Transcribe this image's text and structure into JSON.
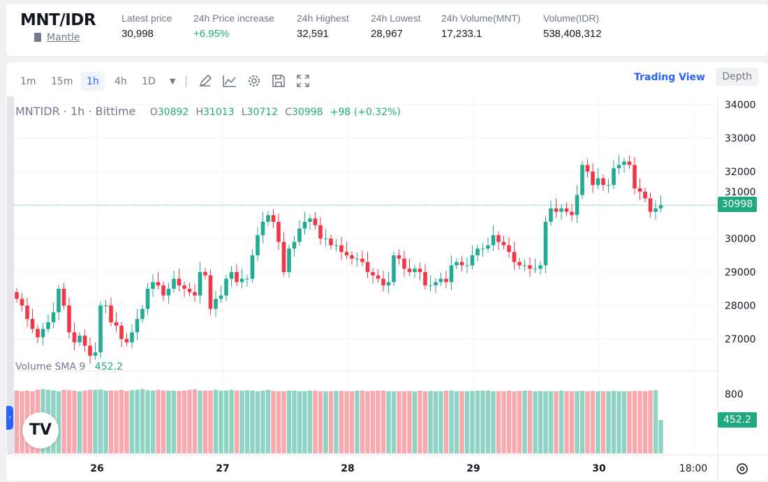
{
  "header": {
    "pair": "MNT/IDR",
    "coin": "Mantle",
    "stats": [
      {
        "label": "Latest price",
        "value": "30,998"
      },
      {
        "label": "24h Price increase",
        "value": "+6.95%",
        "positive": true
      },
      {
        "label": "24h Highest",
        "value": "32,591"
      },
      {
        "label": "24h Lowest",
        "value": "28,967"
      },
      {
        "label": "24h Volume(MNT)",
        "value": "17,233.1"
      },
      {
        "label": "Volume(IDR)",
        "value": "538,408,312"
      }
    ]
  },
  "toolbar": {
    "intervals": [
      "1m",
      "15m",
      "1h",
      "4h",
      "1D"
    ],
    "active": "1h",
    "icons": [
      "chevron-down-icon",
      "pencil-icon",
      "indicator-icon",
      "gear-icon",
      "save-icon",
      "fullscreen-icon"
    ],
    "trading_view": "Trading View",
    "depth": "Depth"
  },
  "legend": {
    "symbol": "MNTIDR · 1h · Bittime",
    "o_label": "O",
    "o": "30892",
    "h_label": "H",
    "h": "31013",
    "l_label": "L",
    "l": "30712",
    "c_label": "C",
    "c": "30998",
    "change": "+98 (+0.32%)"
  },
  "volume_legend": {
    "label": "Volume SMA 9",
    "value": "452.2"
  },
  "colors": {
    "up": "#22ab94",
    "down": "#f23645",
    "up_volume": "#8fd3c4",
    "down_volume": "#f7a9ad",
    "accent": "#2962ff"
  },
  "chart_data": {
    "type": "candlestick",
    "price_ticks": [
      "34000",
      "33000",
      "32000",
      "31000",
      "30000",
      "29000",
      "28000",
      "27000"
    ],
    "ylim": [
      26200,
      34200
    ],
    "current_price": "30998",
    "x_ticks": [
      "26",
      "27",
      "28",
      "29",
      "30",
      "18:00"
    ],
    "volume_ticks": [
      "800"
    ],
    "current_volume": "452.2",
    "first_open": 28400,
    "closes": [
      28200,
      28000,
      27600,
      27300,
      27050,
      27300,
      27500,
      27800,
      28500,
      28000,
      27200,
      26900,
      27100,
      26800,
      26500,
      26600,
      28000,
      28000,
      27500,
      27400,
      27000,
      26900,
      27200,
      27600,
      27900,
      28500,
      28700,
      28600,
      28300,
      28500,
      28800,
      28600,
      28500,
      28400,
      28300,
      29000,
      28900,
      27900,
      28200,
      28300,
      28800,
      29000,
      28700,
      28800,
      28800,
      29500,
      30100,
      30500,
      30700,
      30500,
      29900,
      29000,
      29700,
      29900,
      30300,
      30500,
      30600,
      30400,
      30000,
      30000,
      29800,
      29800,
      29600,
      29500,
      29400,
      29400,
      29300,
      29000,
      28900,
      28800,
      28600,
      28700,
      29500,
      29400,
      29100,
      29000,
      29100,
      29000,
      28600,
      28600,
      28700,
      28800,
      28700,
      29200,
      29300,
      29200,
      29200,
      29500,
      29700,
      29700,
      29800,
      30100,
      29900,
      29800,
      29600,
      29300,
      29200,
      29200,
      29100,
      29100,
      29200,
      30500,
      30900,
      30800,
      30900,
      30800,
      30700,
      31300,
      32200,
      32000,
      31600,
      31800,
      31600,
      31600,
      32100,
      32200,
      32300,
      32200,
      31500,
      31400,
      31200,
      30800,
      30900,
      30998
    ],
    "volumes": [
      850,
      840,
      850,
      840,
      860,
      870,
      860,
      850,
      840,
      860,
      855,
      850,
      840,
      850,
      860,
      860,
      865,
      850,
      850,
      850,
      860,
      845,
      855,
      860,
      870,
      855,
      850,
      860,
      850,
      850,
      850,
      845,
      850,
      860,
      865,
      850,
      850,
      850,
      860,
      850,
      850,
      860,
      850,
      850,
      855,
      850,
      840,
      850,
      860,
      845,
      840,
      840,
      850,
      850,
      840,
      840,
      850,
      850,
      840,
      840,
      840,
      845,
      845,
      840,
      840,
      850,
      850,
      840,
      845,
      850,
      850,
      840,
      840,
      840,
      840,
      845,
      840,
      850,
      840,
      845,
      840,
      840,
      850,
      850,
      840,
      840,
      840,
      845,
      850,
      850,
      850,
      840,
      840,
      840,
      850,
      840,
      845,
      850,
      850,
      840,
      845,
      840,
      840,
      840,
      850,
      840,
      840,
      840,
      845,
      840,
      845,
      840,
      840,
      840,
      845,
      840,
      840,
      840,
      845,
      845,
      840,
      850,
      855,
      452
    ]
  }
}
